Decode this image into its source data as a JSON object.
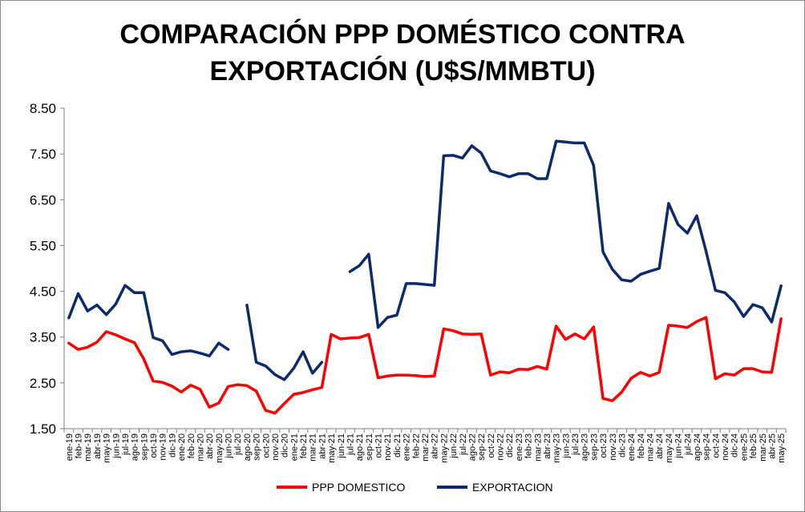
{
  "chart_data": {
    "type": "line",
    "title_line1": "COMPARACIÓN PPP DOMÉSTICO CONTRA",
    "title_line2": "EXPORTACIÓN (U$S/MMBTU)",
    "xlabel": "",
    "ylabel": "",
    "ylim": [
      1.5,
      8.5
    ],
    "yticks": [
      "1.50",
      "2.50",
      "3.50",
      "4.50",
      "5.50",
      "6.50",
      "7.50",
      "8.50"
    ],
    "ytick_values": [
      1.5,
      2.5,
      3.5,
      4.5,
      5.5,
      6.5,
      7.5,
      8.5
    ],
    "grid": false,
    "legend_position": "bottom-center",
    "categories": [
      "ene-19",
      "feb-19",
      "mar-19",
      "abr-19",
      "may-19",
      "jun-19",
      "jul-19",
      "ago-19",
      "sep-19",
      "oct-19",
      "nov-19",
      "dic-19",
      "ene-20",
      "feb-20",
      "mar-20",
      "abr-20",
      "may-20",
      "jun-20",
      "jul-20",
      "ago-20",
      "sep-20",
      "oct-20",
      "nov-20",
      "dic-20",
      "ene-21",
      "feb-21",
      "mar-21",
      "abr-21",
      "may-21",
      "jun-21",
      "jul-21",
      "ago-21",
      "sep-21",
      "oct-21",
      "nov-21",
      "dic-21",
      "ene-22",
      "feb-22",
      "mar-22",
      "abr-22",
      "may-22",
      "jun-22",
      "jul-22",
      "ago-22",
      "sep-22",
      "oct-22",
      "nov-22",
      "dic-22",
      "ene-23",
      "feb-23",
      "mar-23",
      "abr-23",
      "may-23",
      "jun-23",
      "jul-23",
      "ago-23",
      "sep-23",
      "oct-23",
      "nov-23",
      "dic-23",
      "ene-24",
      "feb-24",
      "mar-24",
      "abr-24",
      "may-24",
      "jun-24",
      "jul-24",
      "ago-24",
      "sep-24",
      "oct-24",
      "nov-24",
      "dic-24",
      "ene-25",
      "feb-25",
      "mar-25",
      "abr-25",
      "may-25"
    ],
    "series": [
      {
        "name": "PPP DOMESTICO",
        "color": "#ff0000",
        "values": [
          3.37,
          3.23,
          3.28,
          3.39,
          3.62,
          3.55,
          3.46,
          3.38,
          3.02,
          2.54,
          2.51,
          2.43,
          2.3,
          2.45,
          2.36,
          1.97,
          2.06,
          2.42,
          2.46,
          2.44,
          2.32,
          1.9,
          1.84,
          2.05,
          2.25,
          2.29,
          2.35,
          2.4,
          3.56,
          3.46,
          3.48,
          3.49,
          3.56,
          2.61,
          2.65,
          2.67,
          2.67,
          2.66,
          2.64,
          2.65,
          3.68,
          3.64,
          3.57,
          3.56,
          3.57,
          2.67,
          2.74,
          2.72,
          2.8,
          2.79,
          2.86,
          2.8,
          3.74,
          3.45,
          3.57,
          3.46,
          3.72,
          2.16,
          2.11,
          2.3,
          2.6,
          2.73,
          2.65,
          2.73,
          3.76,
          3.74,
          3.71,
          3.84,
          3.93,
          2.59,
          2.7,
          2.67,
          2.81,
          2.81,
          2.74,
          2.73,
          3.9
        ]
      },
      {
        "name": "EXPORTACION",
        "color": "#0d2b6b",
        "values": [
          3.92,
          4.45,
          4.07,
          4.2,
          3.99,
          4.22,
          4.63,
          4.47,
          4.47,
          3.49,
          3.42,
          3.12,
          3.18,
          3.2,
          3.15,
          3.09,
          3.37,
          3.23,
          null,
          4.2,
          2.95,
          2.87,
          2.68,
          2.57,
          2.82,
          3.18,
          2.71,
          2.95,
          null,
          null,
          4.93,
          5.06,
          5.31,
          3.71,
          3.93,
          3.98,
          4.67,
          4.67,
          4.65,
          4.63,
          7.46,
          7.47,
          7.41,
          7.68,
          7.52,
          7.13,
          7.07,
          7.0,
          7.07,
          7.07,
          6.96,
          6.96,
          7.78,
          7.76,
          7.74,
          7.74,
          7.25,
          5.36,
          4.98,
          4.75,
          4.72,
          4.87,
          4.94,
          5.0,
          6.42,
          5.96,
          5.77,
          6.15,
          5.37,
          4.52,
          4.47,
          4.27,
          3.95,
          4.21,
          4.14,
          3.83,
          4.62
        ]
      }
    ]
  }
}
